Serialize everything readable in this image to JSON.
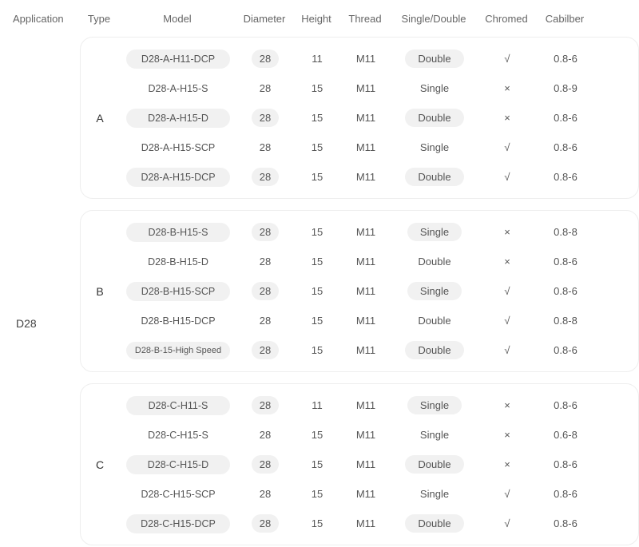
{
  "colors": {
    "background": "#ffffff",
    "text": "#555555",
    "header_text": "#666666",
    "pill_bg": "#f1f1f1",
    "group_border": "#eeeeee"
  },
  "typography": {
    "body_fontsize": 13,
    "model_fontsize": 12.5,
    "small_model_fontsize": 11
  },
  "headers": {
    "application": "Application",
    "type": "Type",
    "model": "Model",
    "diameter": "Diameter",
    "height": "Height",
    "thread": "Thread",
    "single_double": "Single/Double",
    "chromed": "Chromed",
    "caliber": "Cabilber"
  },
  "application": "D28",
  "groups": [
    {
      "type": "A",
      "rows": [
        {
          "model": "D28-A-H11-DCP",
          "dia": "28",
          "hgt": "11",
          "thr": "M11",
          "sd": "Double",
          "chr": "√",
          "cal": "0.8-6"
        },
        {
          "model": "D28-A-H15-S",
          "dia": "28",
          "hgt": "15",
          "thr": "M11",
          "sd": "Single",
          "chr": "×",
          "cal": "0.8-9"
        },
        {
          "model": "D28-A-H15-D",
          "dia": "28",
          "hgt": "15",
          "thr": "M11",
          "sd": "Double",
          "chr": "×",
          "cal": "0.8-6"
        },
        {
          "model": "D28-A-H15-SCP",
          "dia": "28",
          "hgt": "15",
          "thr": "M11",
          "sd": "Single",
          "chr": "√",
          "cal": "0.8-6"
        },
        {
          "model": "D28-A-H15-DCP",
          "dia": "28",
          "hgt": "15",
          "thr": "M11",
          "sd": "Double",
          "chr": "√",
          "cal": "0.8-6"
        }
      ]
    },
    {
      "type": "B",
      "rows": [
        {
          "model": "D28-B-H15-S",
          "dia": "28",
          "hgt": "15",
          "thr": "M11",
          "sd": "Single",
          "chr": "×",
          "cal": "0.8-8"
        },
        {
          "model": "D28-B-H15-D",
          "dia": "28",
          "hgt": "15",
          "thr": "M11",
          "sd": "Double",
          "chr": "×",
          "cal": "0.8-6"
        },
        {
          "model": "D28-B-H15-SCP",
          "dia": "28",
          "hgt": "15",
          "thr": "M11",
          "sd": "Single",
          "chr": "√",
          "cal": "0.8-6"
        },
        {
          "model": "D28-B-H15-DCP",
          "dia": "28",
          "hgt": "15",
          "thr": "M11",
          "sd": "Double",
          "chr": "√",
          "cal": "0.8-8"
        },
        {
          "model": "D28-B-15-High Speed",
          "small": true,
          "dia": "28",
          "hgt": "15",
          "thr": "M11",
          "sd": "Double",
          "chr": "√",
          "cal": "0.8-6"
        }
      ]
    },
    {
      "type": "C",
      "rows": [
        {
          "model": "D28-C-H11-S",
          "dia": "28",
          "hgt": "11",
          "thr": "M11",
          "sd": "Single",
          "chr": "×",
          "cal": "0.8-6"
        },
        {
          "model": "D28-C-H15-S",
          "dia": "28",
          "hgt": "15",
          "thr": "M11",
          "sd": "Single",
          "chr": "×",
          "cal": "0.6-8"
        },
        {
          "model": "D28-C-H15-D",
          "dia": "28",
          "hgt": "15",
          "thr": "M11",
          "sd": "Double",
          "chr": "×",
          "cal": "0.8-6"
        },
        {
          "model": "D28-C-H15-SCP",
          "dia": "28",
          "hgt": "15",
          "thr": "M11",
          "sd": "Single",
          "chr": "√",
          "cal": "0.8-6"
        },
        {
          "model": "D28-C-H15-DCP",
          "dia": "28",
          "hgt": "15",
          "thr": "M11",
          "sd": "Double",
          "chr": "√",
          "cal": "0.8-6"
        }
      ]
    }
  ]
}
